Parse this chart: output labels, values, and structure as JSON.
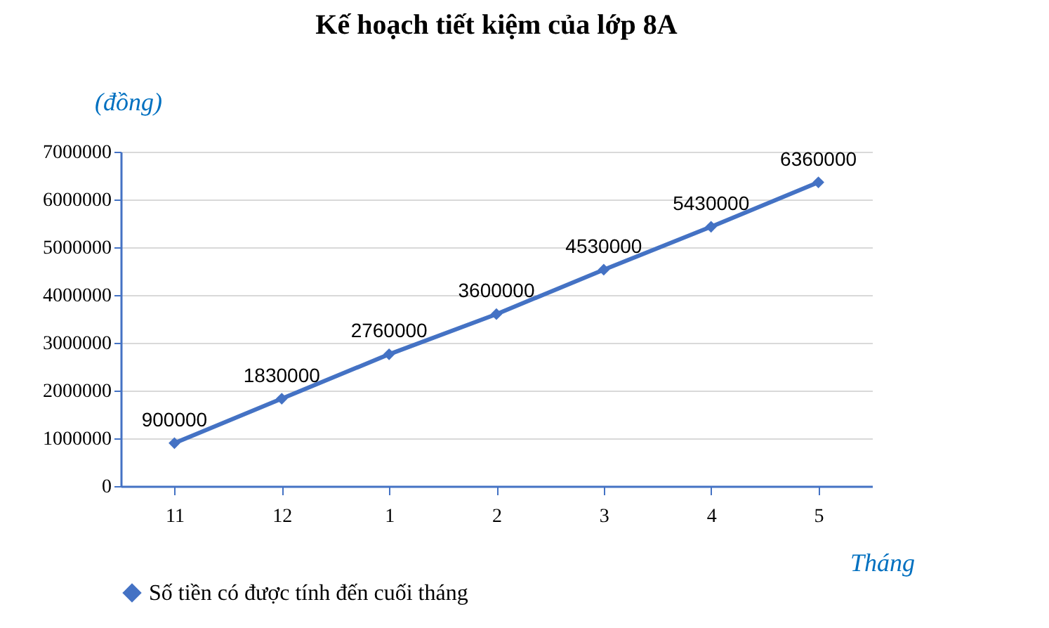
{
  "chart_data": {
    "type": "line",
    "title": "Kế hoạch tiết kiệm của lớp 8A",
    "ylabel": "(đồng)",
    "xlabel": "Tháng",
    "categories": [
      "11",
      "12",
      "1",
      "2",
      "3",
      "4",
      "5"
    ],
    "series": [
      {
        "name": "Số tiền có được tính đến cuối tháng",
        "color": "#4472c4",
        "values": [
          900000,
          1830000,
          2760000,
          3600000,
          4530000,
          5430000,
          6360000
        ]
      }
    ],
    "ylim": [
      0,
      7000000
    ],
    "yticks": [
      0,
      1000000,
      2000000,
      3000000,
      4000000,
      5000000,
      6000000,
      7000000
    ],
    "grid": "y",
    "legend": "bottom",
    "marker": "diamond",
    "line_style": "solid",
    "data_labels": true
  }
}
